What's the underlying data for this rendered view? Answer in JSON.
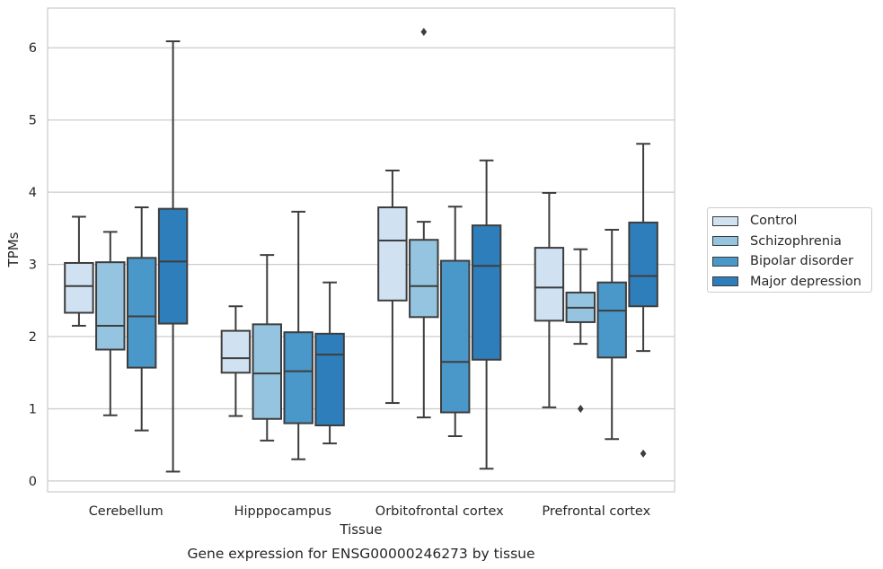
{
  "chart_data": {
    "type": "box",
    "title": "Gene expression for ENSG00000246273 by tissue",
    "xlabel": "Tissue",
    "ylabel": "TPMs",
    "ylim": [
      -0.15,
      6.55
    ],
    "yticks": [
      0,
      1,
      2,
      3,
      4,
      5,
      6
    ],
    "grid": true,
    "legend_position": "right",
    "categories": [
      "Cerebellum",
      "Hipppocampus",
      "Orbitofrontal cortex",
      "Prefrontal cortex"
    ],
    "series": [
      {
        "name": "Control",
        "color": "#d0e1f2",
        "boxes": [
          {
            "whisker_low": 2.15,
            "q1": 2.33,
            "median": 2.7,
            "q3": 3.02,
            "whisker_high": 3.66,
            "outliers": []
          },
          {
            "whisker_low": 0.9,
            "q1": 1.5,
            "median": 1.7,
            "q3": 2.08,
            "whisker_high": 2.42,
            "outliers": []
          },
          {
            "whisker_low": 1.08,
            "q1": 2.5,
            "median": 3.33,
            "q3": 3.79,
            "whisker_high": 4.3,
            "outliers": []
          },
          {
            "whisker_low": 1.02,
            "q1": 2.22,
            "median": 2.68,
            "q3": 3.23,
            "whisker_high": 3.99,
            "outliers": []
          }
        ]
      },
      {
        "name": "Schizophrenia",
        "color": "#94c4df",
        "boxes": [
          {
            "whisker_low": 0.91,
            "q1": 1.82,
            "median": 2.15,
            "q3": 3.03,
            "whisker_high": 3.45,
            "outliers": []
          },
          {
            "whisker_low": 0.56,
            "q1": 0.86,
            "median": 1.49,
            "q3": 2.17,
            "whisker_high": 3.13,
            "outliers": []
          },
          {
            "whisker_low": 0.88,
            "q1": 2.27,
            "median": 2.7,
            "q3": 3.34,
            "whisker_high": 3.59,
            "outliers": [
              6.22
            ]
          },
          {
            "whisker_low": 1.9,
            "q1": 2.2,
            "median": 2.4,
            "q3": 2.61,
            "whisker_high": 3.21,
            "outliers": [
              1.0
            ]
          }
        ]
      },
      {
        "name": "Bipolar disorder",
        "color": "#4a98c9",
        "boxes": [
          {
            "whisker_low": 0.7,
            "q1": 1.57,
            "median": 2.28,
            "q3": 3.09,
            "whisker_high": 3.79,
            "outliers": []
          },
          {
            "whisker_low": 0.3,
            "q1": 0.8,
            "median": 1.52,
            "q3": 2.06,
            "whisker_high": 3.73,
            "outliers": []
          },
          {
            "whisker_low": 0.62,
            "q1": 0.95,
            "median": 1.65,
            "q3": 3.05,
            "whisker_high": 3.8,
            "outliers": []
          },
          {
            "whisker_low": 0.58,
            "q1": 1.71,
            "median": 2.36,
            "q3": 2.75,
            "whisker_high": 3.48,
            "outliers": []
          }
        ]
      },
      {
        "name": "Major depression",
        "color": "#2e7ebc",
        "boxes": [
          {
            "whisker_low": 0.13,
            "q1": 2.18,
            "median": 3.04,
            "q3": 3.77,
            "whisker_high": 6.09,
            "outliers": []
          },
          {
            "whisker_low": 0.52,
            "q1": 0.77,
            "median": 1.75,
            "q3": 2.04,
            "whisker_high": 2.75,
            "outliers": []
          },
          {
            "whisker_low": 0.17,
            "q1": 1.68,
            "median": 2.98,
            "q3": 3.54,
            "whisker_high": 4.44,
            "outliers": []
          },
          {
            "whisker_low": 1.8,
            "q1": 2.42,
            "median": 2.84,
            "q3": 3.58,
            "whisker_high": 4.67,
            "outliers": [
              0.38
            ]
          }
        ]
      }
    ]
  }
}
